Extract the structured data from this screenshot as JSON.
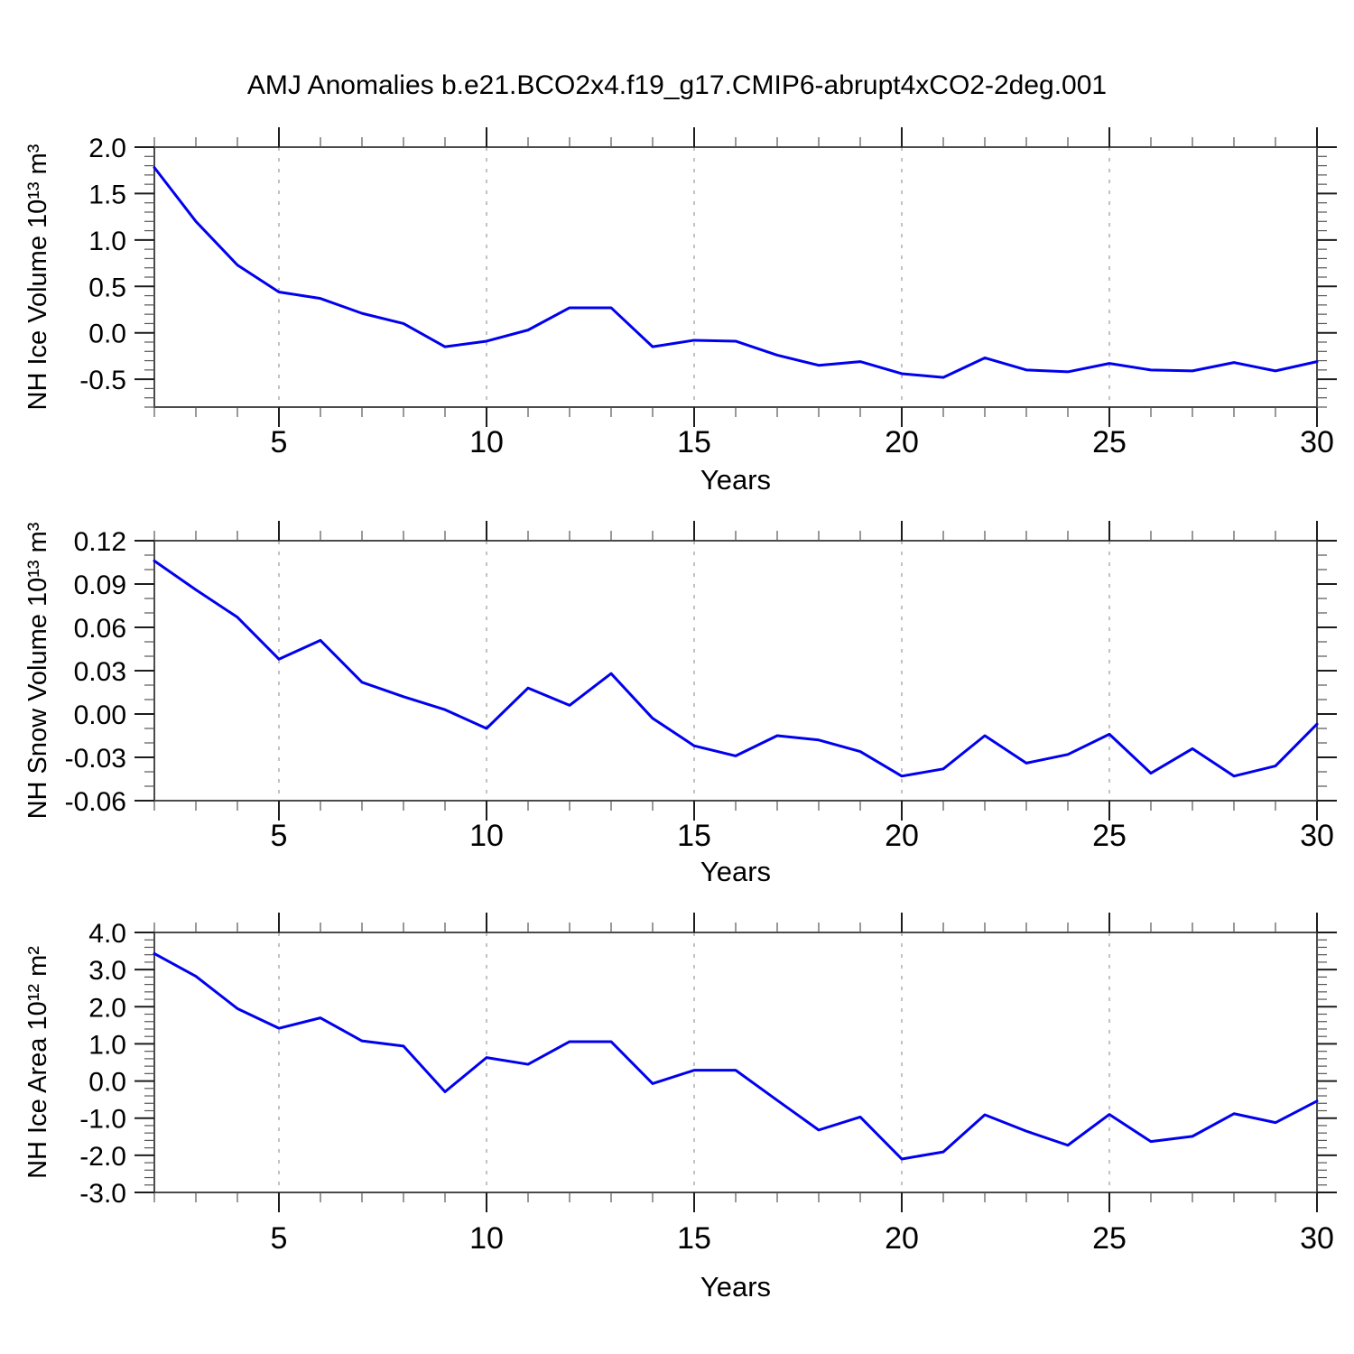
{
  "title": "AMJ Anomalies b.e21.BCO2x4.f19_g17.CMIP6-abrupt4xCO2-2deg.001",
  "colors": {
    "line": "#0000ee",
    "frame": "#4a4a4a",
    "grid": "#9a9a9a",
    "tick_major": "#1c1c1c",
    "tick_minor": "#555555",
    "text": "#000000",
    "background": "#ffffff"
  },
  "x_axis": {
    "label": "Years",
    "start": 2,
    "end": 30,
    "major_ticks": [
      5,
      10,
      15,
      20,
      25,
      30
    ],
    "tick_labels": [
      "5",
      "10",
      "15",
      "20",
      "25",
      "30"
    ],
    "minor_step": 1,
    "gridline_years": [
      5,
      10,
      15,
      20,
      25
    ],
    "grid_style": "vertical-dashed"
  },
  "years": [
    2,
    3,
    4,
    5,
    6,
    7,
    8,
    9,
    10,
    11,
    12,
    13,
    14,
    15,
    16,
    17,
    18,
    19,
    20,
    21,
    22,
    23,
    24,
    25,
    26,
    27,
    28,
    29,
    30
  ],
  "chart_data": [
    {
      "type": "line",
      "name": "nh-ice-volume",
      "series_label": "NH Ice Volume",
      "ylabel": "NH Ice Volume 10¹³ m³",
      "ylim": [
        -0.8,
        2.0
      ],
      "ytick_values": [
        2.0,
        1.5,
        1.0,
        0.5,
        0.0,
        -0.5
      ],
      "ytick_labels": [
        "2.0",
        "1.5",
        "1.0",
        "0.5",
        "0.0",
        "-0.5"
      ],
      "yminor_step": 0.1,
      "values": [
        1.78,
        1.2,
        0.73,
        0.44,
        0.37,
        0.21,
        0.1,
        -0.15,
        -0.09,
        0.03,
        0.27,
        0.27,
        -0.15,
        -0.08,
        -0.09,
        -0.24,
        -0.35,
        -0.31,
        -0.44,
        -0.48,
        -0.27,
        -0.4,
        -0.42,
        -0.33,
        -0.4,
        -0.41,
        -0.32,
        -0.41,
        -0.31
      ]
    },
    {
      "type": "line",
      "name": "nh-snow-volume",
      "series_label": "NH Snow Volume",
      "ylabel": "NH Snow Volume 10¹³ m³",
      "ylim": [
        -0.06,
        0.12
      ],
      "ytick_values": [
        0.12,
        0.09,
        0.06,
        0.03,
        0.0,
        -0.03,
        -0.06
      ],
      "ytick_labels": [
        "0.12",
        "0.09",
        "0.06",
        "0.03",
        "0.00",
        "-0.03",
        "-0.06"
      ],
      "yminor_step": 0.01,
      "values": [
        0.106,
        0.086,
        0.067,
        0.038,
        0.051,
        0.022,
        0.012,
        0.003,
        -0.01,
        0.018,
        0.006,
        0.028,
        -0.003,
        -0.022,
        -0.029,
        -0.015,
        -0.018,
        -0.026,
        -0.043,
        -0.038,
        -0.015,
        -0.034,
        -0.028,
        -0.014,
        -0.041,
        -0.024,
        -0.043,
        -0.036,
        -0.007
      ]
    },
    {
      "type": "line",
      "name": "nh-ice-area",
      "series_label": "NH Ice Area",
      "ylabel": "NH Ice Area 10¹² m²",
      "ylim": [
        -3.0,
        4.0
      ],
      "ytick_values": [
        4.0,
        3.0,
        2.0,
        1.0,
        0.0,
        -1.0,
        -2.0,
        -3.0
      ],
      "ytick_labels": [
        "4.0",
        "3.0",
        "2.0",
        "1.0",
        "0.0",
        "-1.0",
        "-2.0",
        "-3.0"
      ],
      "yminor_step": 0.2,
      "values": [
        3.43,
        2.82,
        1.95,
        1.42,
        1.7,
        1.08,
        0.94,
        -0.29,
        0.63,
        0.45,
        1.06,
        1.06,
        -0.07,
        0.29,
        0.29,
        -0.52,
        -1.32,
        -0.97,
        -2.1,
        -1.91,
        -0.91,
        -1.35,
        -1.73,
        -0.9,
        -1.63,
        -1.49,
        -0.88,
        -1.12,
        -0.54
      ]
    }
  ]
}
